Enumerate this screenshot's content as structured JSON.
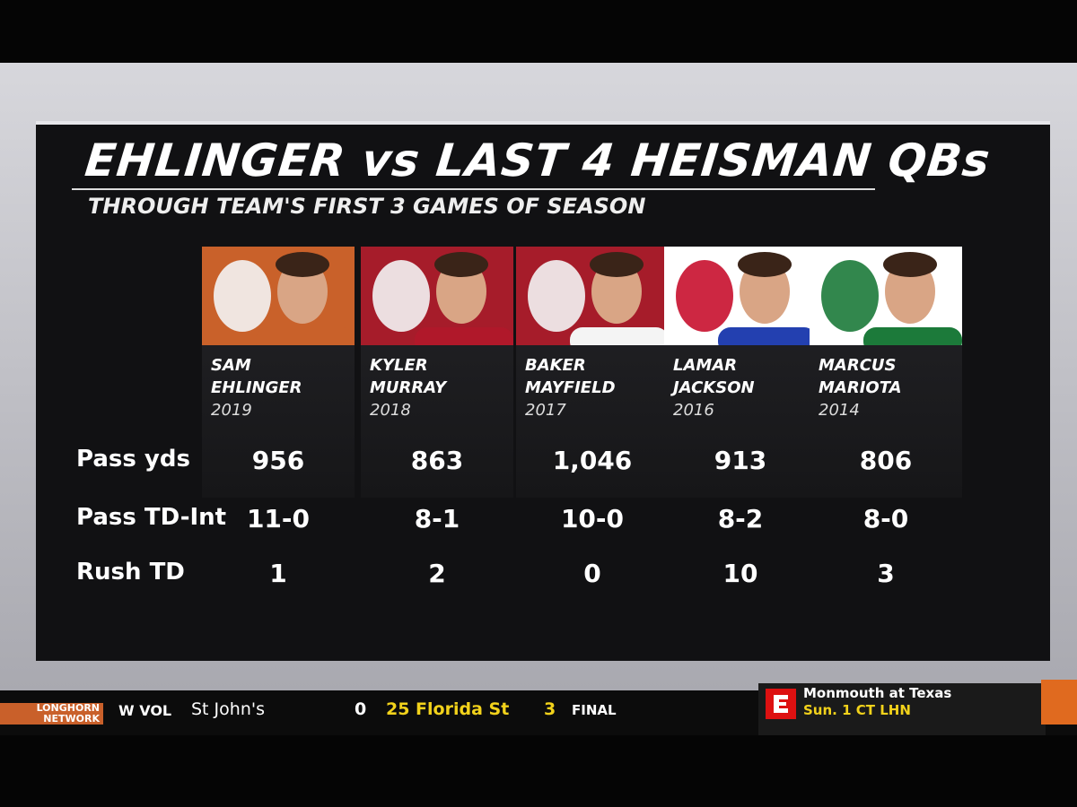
{
  "header": {
    "title": "EHLINGER vs LAST 4 HEISMAN QBs",
    "subtitle": "THROUGH TEAM'S FIRST 3 GAMES OF SEASON"
  },
  "players": [
    {
      "first": "SAM",
      "last": "EHLINGER",
      "year": "2019"
    },
    {
      "first": "KYLER",
      "last": "MURRAY",
      "year": "2018"
    },
    {
      "first": "BAKER",
      "last": "MAYFIELD",
      "year": "2017"
    },
    {
      "first": "LAMAR",
      "last": "JACKSON",
      "year": "2016"
    },
    {
      "first": "MARCUS",
      "last": "MARIOTA",
      "year": "2014"
    }
  ],
  "table": {
    "rows": [
      {
        "label": "Pass yds",
        "values": [
          "956",
          "863",
          "1,046",
          "913",
          "806"
        ]
      },
      {
        "label": "Pass TD-Int",
        "values": [
          "11-0",
          "8-1",
          "10-0",
          "8-2",
          "8-0"
        ]
      },
      {
        "label": "Rush TD",
        "values": [
          "1",
          "2",
          "0",
          "10",
          "3"
        ]
      }
    ]
  },
  "ticker": {
    "network": "LONGHORN NETWORK",
    "sport": "W VOL",
    "team1": "St John's",
    "score1": "0",
    "team2": "25 Florida St",
    "score2": "3",
    "status": "FINAL",
    "promo_title": "Monmouth at Texas",
    "promo_time": "Sun. 1 CT LHN"
  }
}
